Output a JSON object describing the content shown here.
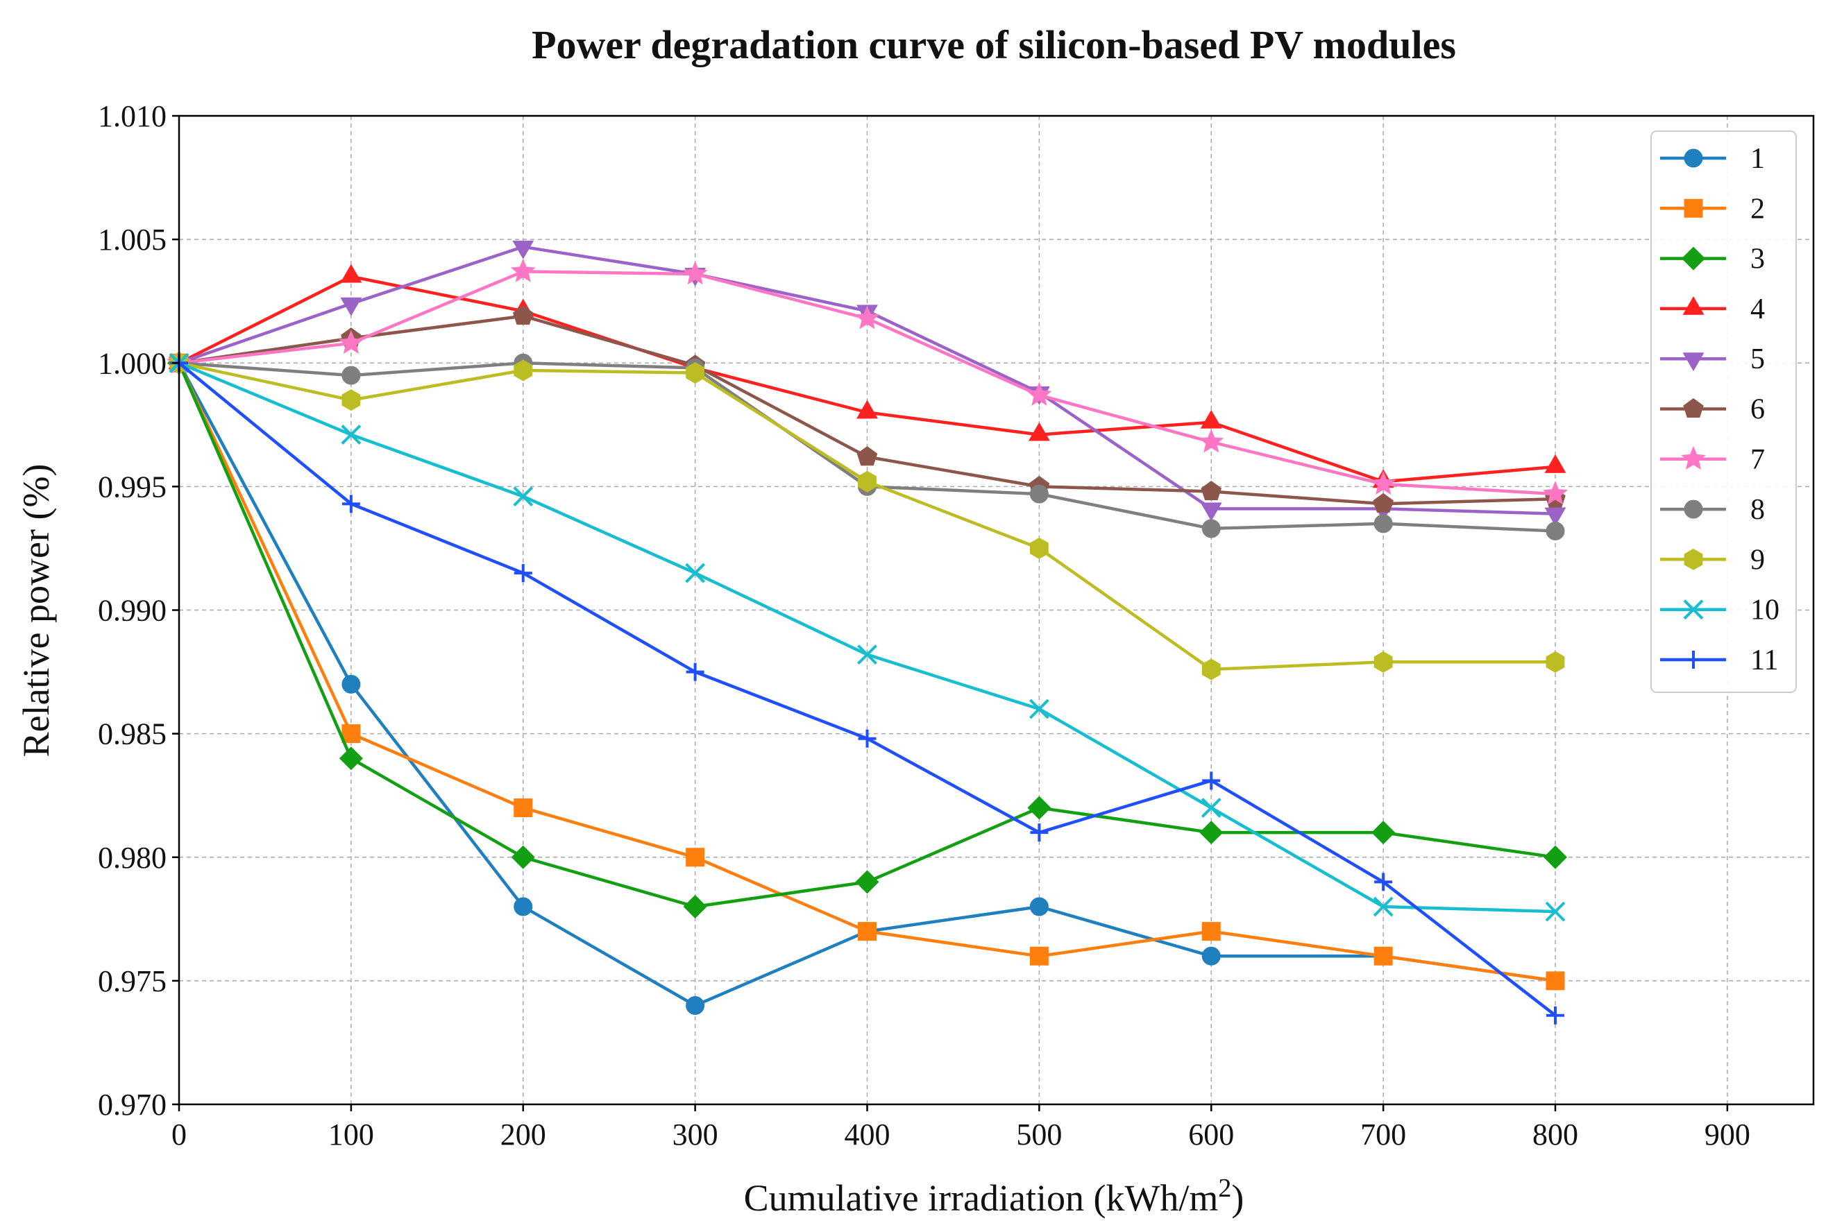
{
  "chart_data": {
    "type": "line",
    "title": "Power degradation curve of silicon-based PV modules",
    "xlabel": "Cumulative irradiation (kWh/m",
    "xlabel_sup": "2",
    "xlabel_end": ")",
    "ylabel": "Relative power (%)",
    "xlim": [
      0,
      950
    ],
    "ylim": [
      0.97,
      1.01
    ],
    "xticks": [
      "0",
      "100",
      "200",
      "300",
      "400",
      "500",
      "600",
      "700",
      "800",
      "900"
    ],
    "xtick_values": [
      0,
      100,
      200,
      300,
      400,
      500,
      600,
      700,
      800,
      900
    ],
    "yticks": [
      "0.970",
      "0.975",
      "0.980",
      "0.985",
      "0.990",
      "0.995",
      "1.000",
      "1.005",
      "1.010"
    ],
    "ytick_values": [
      0.97,
      0.975,
      0.98,
      0.985,
      0.99,
      0.995,
      1.0,
      1.005,
      1.01
    ],
    "grid": true,
    "legend_position": "top-right",
    "x": [
      0,
      100,
      200,
      300,
      400,
      500,
      600,
      700,
      800
    ],
    "series": [
      {
        "name": "1",
        "color": "#1f7fbf",
        "marker": "circle",
        "values": [
          1.0,
          0.987,
          0.978,
          0.974,
          0.977,
          0.978,
          0.976,
          0.976,
          0.975
        ]
      },
      {
        "name": "2",
        "color": "#ff7f0e",
        "marker": "square",
        "values": [
          1.0,
          0.985,
          0.982,
          0.98,
          0.977,
          0.976,
          0.977,
          0.976,
          0.975
        ]
      },
      {
        "name": "3",
        "color": "#12a012",
        "marker": "diamond",
        "values": [
          1.0,
          0.984,
          0.98,
          0.978,
          0.979,
          0.982,
          0.981,
          0.981,
          0.98
        ]
      },
      {
        "name": "4",
        "color": "#ff2020",
        "marker": "triangle-up",
        "values": [
          1.0,
          1.0035,
          1.0021,
          0.9998,
          0.998,
          0.9971,
          0.9976,
          0.9952,
          0.9958
        ]
      },
      {
        "name": "5",
        "color": "#9b63c8",
        "marker": "triangle-down",
        "values": [
          1.0,
          1.0024,
          1.0047,
          1.0036,
          1.0021,
          0.9988,
          0.9941,
          0.9941,
          0.9939
        ]
      },
      {
        "name": "6",
        "color": "#8c564b",
        "marker": "pentagon",
        "values": [
          1.0,
          1.001,
          1.0019,
          0.9999,
          0.9962,
          0.995,
          0.9948,
          0.9943,
          0.9945
        ]
      },
      {
        "name": "7",
        "color": "#ff77c4",
        "marker": "star",
        "values": [
          1.0,
          1.0008,
          1.0037,
          1.0036,
          1.0018,
          0.9987,
          0.9968,
          0.9951,
          0.9947
        ]
      },
      {
        "name": "8",
        "color": "#7f7f7f",
        "marker": "circle",
        "values": [
          1.0,
          0.9995,
          1.0,
          0.9998,
          0.995,
          0.9947,
          0.9933,
          0.9935,
          0.9932
        ]
      },
      {
        "name": "9",
        "color": "#bcbd22",
        "marker": "hexagon",
        "values": [
          1.0,
          0.9985,
          0.9997,
          0.9996,
          0.9952,
          0.9925,
          0.9876,
          0.9879,
          0.9879
        ]
      },
      {
        "name": "10",
        "color": "#17becf",
        "marker": "x",
        "values": [
          1.0,
          0.9971,
          0.9946,
          0.9915,
          0.9882,
          0.986,
          0.982,
          0.978,
          0.9778
        ]
      },
      {
        "name": "11",
        "color": "#1f4fff",
        "marker": "plus",
        "values": [
          1.0,
          0.9943,
          0.9915,
          0.9875,
          0.9848,
          0.981,
          0.9831,
          0.979,
          0.9736
        ]
      }
    ]
  }
}
